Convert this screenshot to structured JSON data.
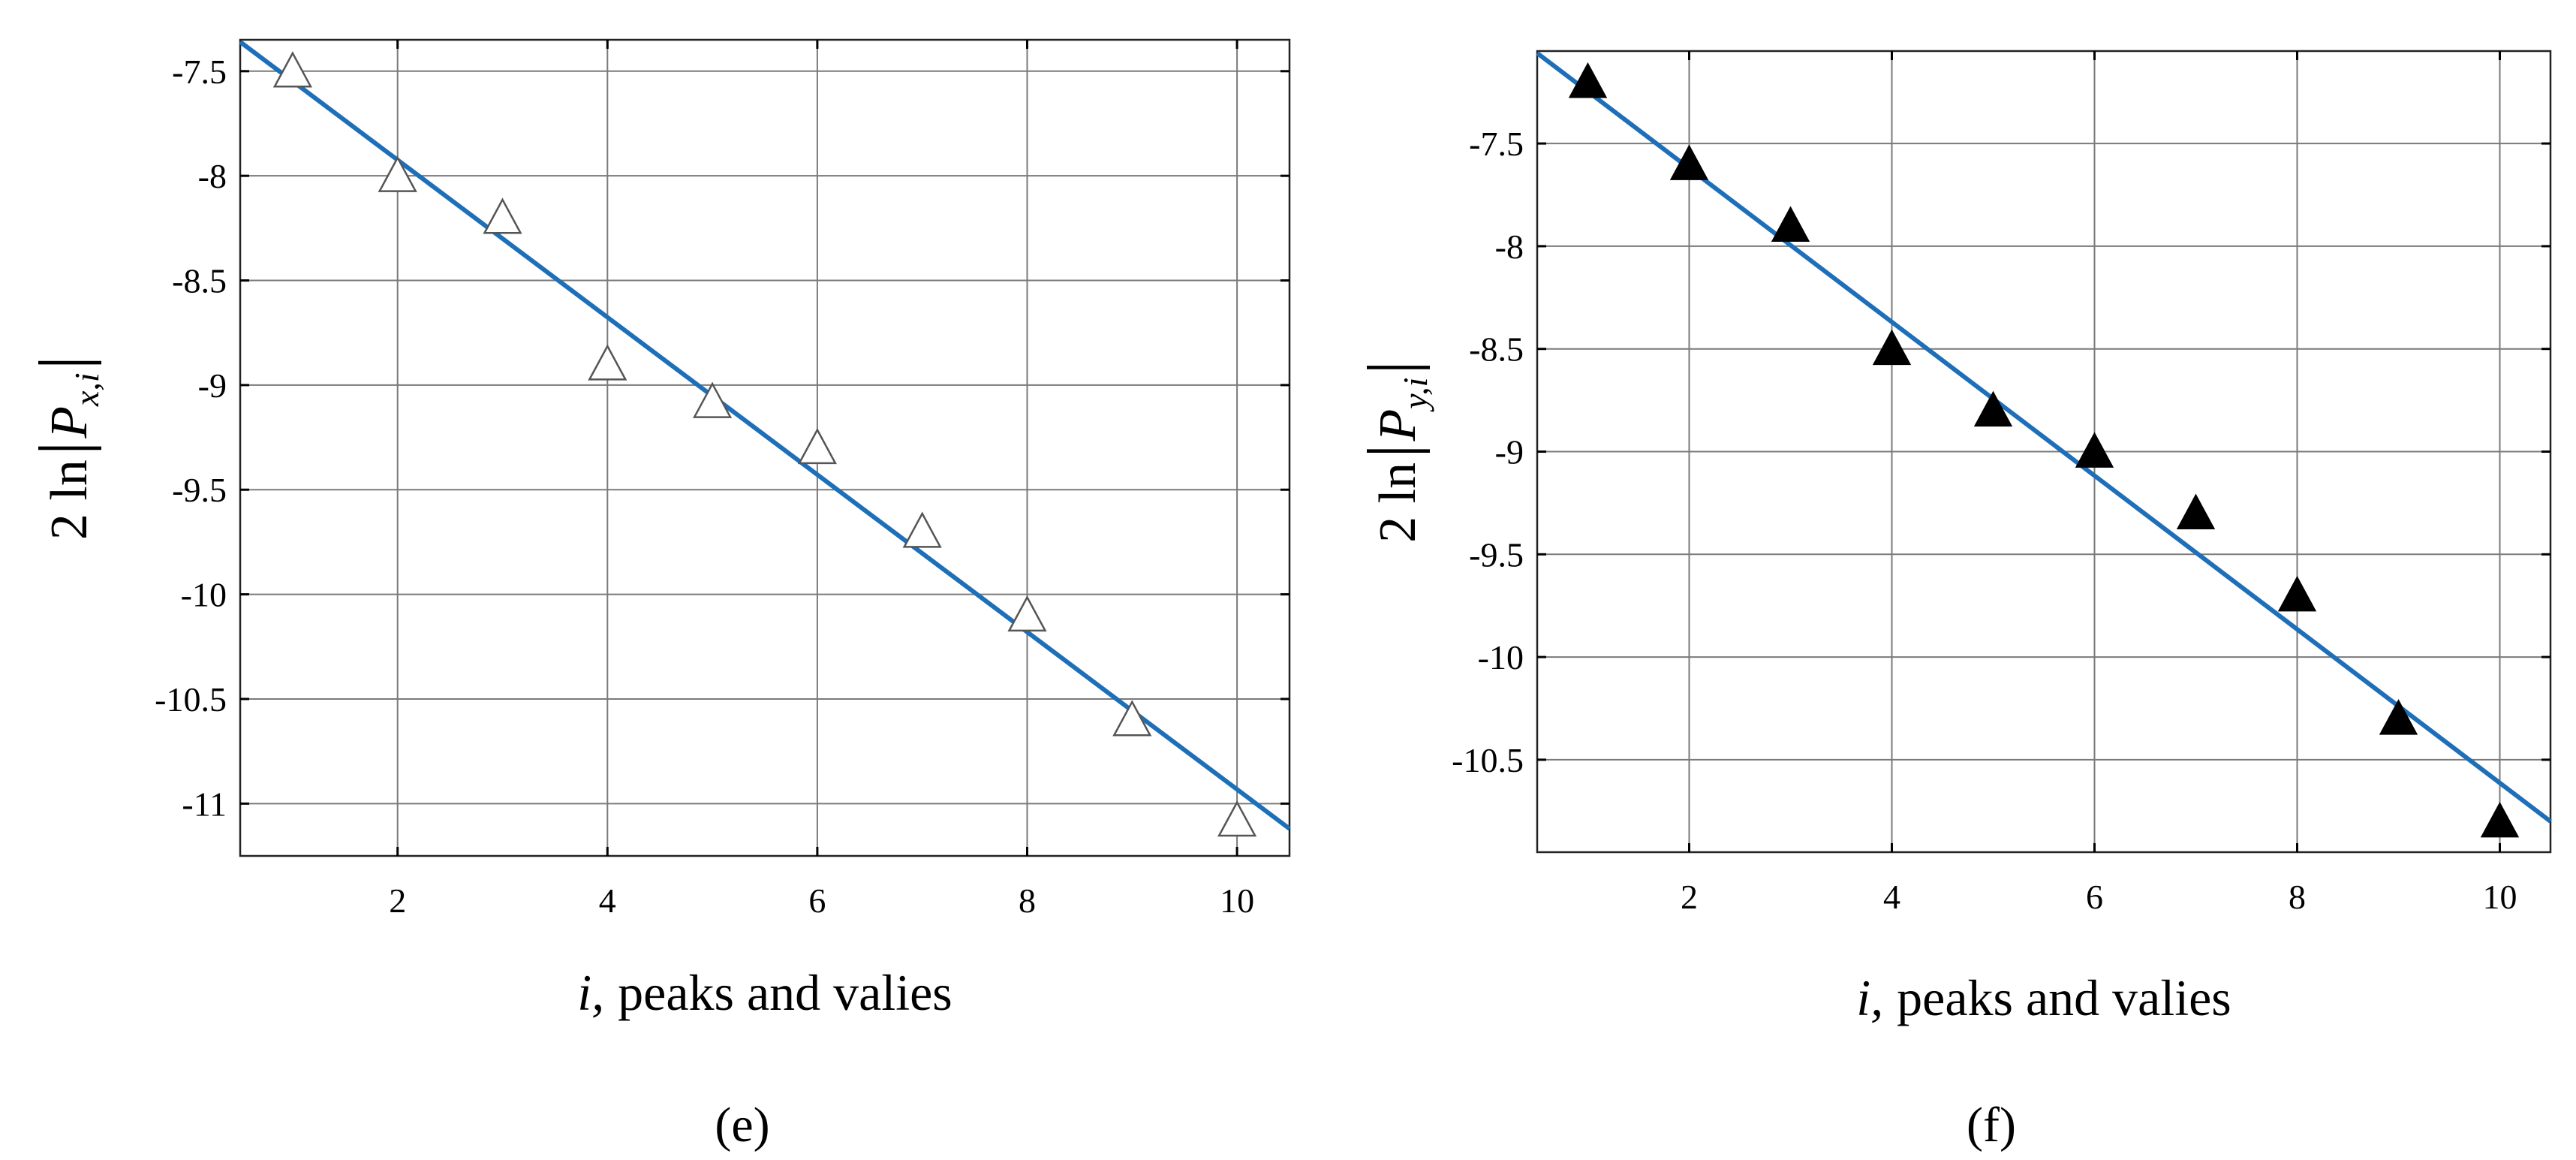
{
  "chart_data": [
    {
      "type": "scatter",
      "panel_label": "(e)",
      "xlabel_var": "i,",
      "xlabel_text": "peaks and valies",
      "ylabel": {
        "prefix": "2 ln",
        "symbol": "P",
        "subscript": "x,i"
      },
      "xlim": [
        0.5,
        10.5
      ],
      "ylim": [
        -11.25,
        -7.35
      ],
      "xticks": [
        2,
        4,
        6,
        8,
        10
      ],
      "xtick_labels": [
        "2",
        "4",
        "6",
        "8",
        "10"
      ],
      "yticks": [
        -7.5,
        -8,
        -8.5,
        -9,
        -9.5,
        -10,
        -10.5,
        -11
      ],
      "ytick_labels": [
        "-7.5",
        "-8",
        "-8.5",
        "-9",
        "-9.5",
        "-10",
        "-10.5",
        "-11"
      ],
      "grid": true,
      "series": [
        {
          "marker": "open-triangle",
          "x": [
            1,
            2,
            3,
            4,
            5,
            6,
            7,
            8,
            9,
            10
          ],
          "y": [
            -7.5,
            -8.0,
            -8.2,
            -8.9,
            -9.08,
            -9.3,
            -9.7,
            -10.1,
            -10.6,
            -11.08
          ]
        },
        {
          "kind": "fit-line",
          "color": "#1f6fb8",
          "x": [
            0.5,
            10.5
          ],
          "y": [
            -7.36,
            -11.12
          ]
        }
      ]
    },
    {
      "type": "scatter",
      "panel_label": "(f)",
      "xlabel_var": "i,",
      "xlabel_text": "peaks and valies",
      "ylabel": {
        "prefix": "2 ln",
        "symbol": "P",
        "subscript": "y,i"
      },
      "xlim": [
        0.5,
        10.5
      ],
      "ylim": [
        -10.95,
        -7.05
      ],
      "xticks": [
        2,
        4,
        6,
        8,
        10
      ],
      "xtick_labels": [
        "2",
        "4",
        "6",
        "8",
        "10"
      ],
      "yticks": [
        -7.5,
        -8,
        -8.5,
        -9,
        -9.5,
        -10,
        -10.5
      ],
      "ytick_labels": [
        "-7.5",
        "-8",
        "-8.5",
        "-9",
        "-9.5",
        "-10",
        "-10.5"
      ],
      "grid": true,
      "series": [
        {
          "marker": "filled-triangle",
          "x": [
            1,
            2,
            3,
            4,
            5,
            6,
            7,
            8,
            9,
            10
          ],
          "y": [
            -7.2,
            -7.6,
            -7.9,
            -8.5,
            -8.8,
            -9.0,
            -9.3,
            -9.7,
            -10.3,
            -10.8
          ]
        },
        {
          "kind": "fit-line",
          "color": "#1f6fb8",
          "x": [
            0.5,
            10.5
          ],
          "y": [
            -7.06,
            -10.8
          ]
        }
      ]
    }
  ]
}
